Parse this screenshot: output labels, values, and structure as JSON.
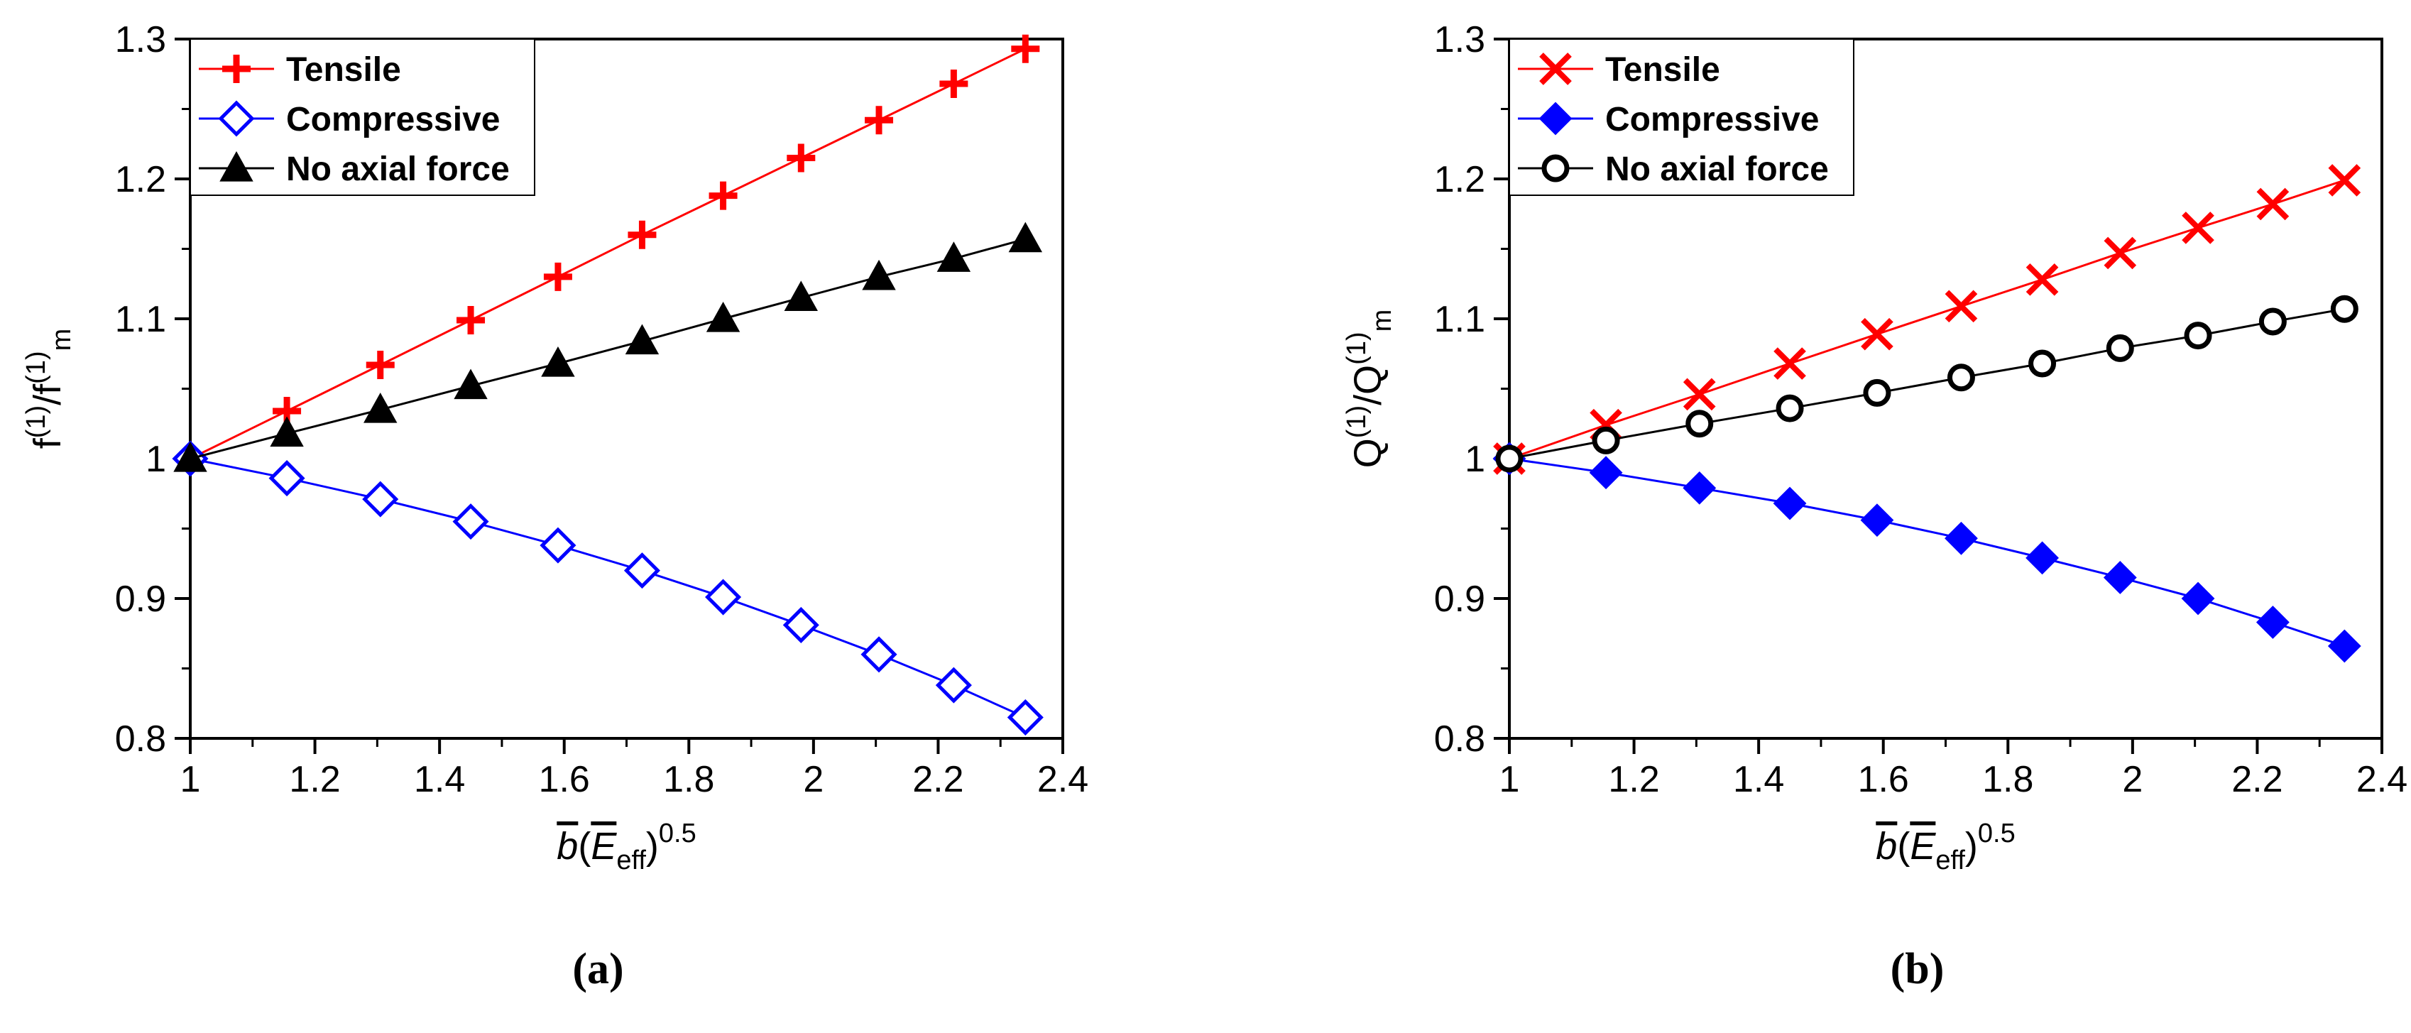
{
  "chart_data": [
    {
      "type": "line",
      "panel_label": "(a)",
      "ylabel": {
        "base1": "f",
        "sup1": "(1)",
        "slash": "/f",
        "sup2": "(1)",
        "sub": "m"
      },
      "xlabel": {
        "b": "b",
        "open": "(",
        "E": "E",
        "sub": "eff",
        "close": ")",
        "sup": "0.5"
      },
      "xlim": [
        1,
        2.4
      ],
      "ylim": [
        0.8,
        1.3
      ],
      "xticks": [
        "1",
        "1.2",
        "1.4",
        "1.6",
        "1.8",
        "2",
        "2.2",
        "2.4"
      ],
      "yticks": [
        "0.8",
        "0.9",
        "1",
        "1.1",
        "1.2",
        "1.3"
      ],
      "x": [
        1.0,
        1.155,
        1.305,
        1.45,
        1.59,
        1.725,
        1.855,
        1.98,
        2.105,
        2.225,
        2.34
      ],
      "series": [
        {
          "name": "Tensile",
          "color": "#ff0000",
          "marker": "plus",
          "filled": true,
          "values": [
            1.0,
            1.034,
            1.067,
            1.099,
            1.13,
            1.16,
            1.188,
            1.215,
            1.242,
            1.268,
            1.293
          ]
        },
        {
          "name": "Compressive",
          "color": "#0000ff",
          "marker": "diamond",
          "filled": false,
          "values": [
            1.0,
            0.986,
            0.971,
            0.955,
            0.938,
            0.92,
            0.901,
            0.881,
            0.86,
            0.838,
            0.815
          ]
        },
        {
          "name": "No axial force",
          "color": "#000000",
          "marker": "triangle",
          "filled": true,
          "values": [
            1.0,
            1.018,
            1.035,
            1.052,
            1.068,
            1.084,
            1.1,
            1.115,
            1.13,
            1.143,
            1.157
          ]
        }
      ]
    },
    {
      "type": "line",
      "panel_label": "(b)",
      "ylabel": {
        "base1": "Q",
        "sup1": "(1)",
        "slash": "/Q",
        "sup2": "(1)",
        "sub": "m"
      },
      "xlabel": {
        "b": "b",
        "open": "(",
        "E": "E",
        "sub": "eff",
        "close": ")",
        "sup": "0.5"
      },
      "xlim": [
        1,
        2.4
      ],
      "ylim": [
        0.8,
        1.3
      ],
      "xticks": [
        "1",
        "1.2",
        "1.4",
        "1.6",
        "1.8",
        "2",
        "2.2",
        "2.4"
      ],
      "yticks": [
        "0.8",
        "0.9",
        "1",
        "1.1",
        "1.2",
        "1.3"
      ],
      "x": [
        1.0,
        1.155,
        1.305,
        1.45,
        1.59,
        1.725,
        1.855,
        1.98,
        2.105,
        2.225,
        2.34
      ],
      "series": [
        {
          "name": "Tensile",
          "color": "#ff0000",
          "marker": "cross",
          "filled": true,
          "values": [
            1.0,
            1.024,
            1.046,
            1.068,
            1.089,
            1.109,
            1.128,
            1.147,
            1.165,
            1.182,
            1.199
          ]
        },
        {
          "name": "Compressive",
          "color": "#0000ff",
          "marker": "diamond",
          "filled": true,
          "values": [
            1.0,
            0.99,
            0.979,
            0.968,
            0.956,
            0.943,
            0.929,
            0.915,
            0.9,
            0.883,
            0.866
          ]
        },
        {
          "name": "No axial force",
          "color": "#000000",
          "marker": "circle",
          "filled": false,
          "values": [
            1.0,
            1.013,
            1.025,
            1.036,
            1.047,
            1.058,
            1.068,
            1.079,
            1.088,
            1.098,
            1.107
          ]
        }
      ]
    }
  ]
}
